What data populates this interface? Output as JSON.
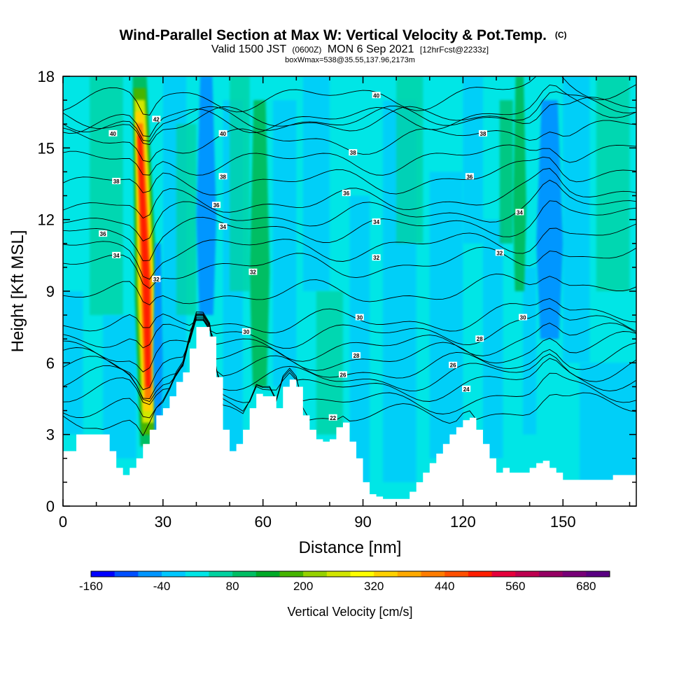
{
  "header": {
    "title": "Wind-Parallel Section at Max W: Vertical Velocity & Pot.Temp.",
    "title_mark": "(C)",
    "subtitle_prefix": "Valid 1500 JST",
    "subtitle_utc": "(0600Z)",
    "subtitle_main": "MON 6 Sep 2021",
    "subtitle_fcst": "[12hrFcst@2233z]",
    "subtitle2": "boxWmax=538@35.55,137.96,2173m"
  },
  "colors": {
    "background_field": "#00e6e6",
    "terrain": "#ffffff",
    "contour": "#000000",
    "colorbar": [
      "#0000ff",
      "#0050ff",
      "#0096ff",
      "#00c8ff",
      "#00e6e6",
      "#00d2a0",
      "#00be64",
      "#00aa28",
      "#46b400",
      "#96d200",
      "#d2e600",
      "#ffff00",
      "#ffd200",
      "#ffaa00",
      "#ff7d00",
      "#ff5000",
      "#ff1e00",
      "#e6003c",
      "#be0050",
      "#960064",
      "#780078",
      "#5a0082"
    ]
  },
  "chart_data": {
    "type": "heatmap",
    "title": "Wind-Parallel Section at Max W: Vertical Velocity & Pot.Temp.",
    "xlabel": "Distance [nm]",
    "ylabel": "Height [Kft MSL]",
    "xlim": [
      0,
      172
    ],
    "ylim": [
      0,
      18
    ],
    "x_ticks": [
      0,
      30,
      60,
      90,
      120,
      150
    ],
    "y_ticks": [
      0,
      3,
      6,
      9,
      12,
      15,
      18
    ],
    "colorbar": {
      "label": "Vertical Velocity [cm/s]",
      "range": [
        -160,
        720
      ],
      "step": 40,
      "ticks": [
        -160,
        -40,
        80,
        200,
        320,
        440,
        560,
        680
      ]
    },
    "terrain_profile": {
      "x": [
        0,
        4,
        10,
        14,
        16,
        18,
        20,
        22,
        24,
        26,
        28,
        30,
        32,
        34,
        36,
        38,
        40,
        42,
        44,
        46,
        48,
        50,
        52,
        54,
        56,
        58,
        60,
        62,
        64,
        66,
        68,
        70,
        72,
        74,
        76,
        78,
        80,
        82,
        84,
        86,
        88,
        90,
        92,
        94,
        96,
        98,
        100,
        102,
        104,
        106,
        108,
        110,
        112,
        114,
        116,
        118,
        120,
        122,
        124,
        126,
        128,
        130,
        132,
        134,
        136,
        138,
        140,
        142,
        144,
        146,
        148,
        150,
        155,
        160,
        165,
        172
      ],
      "height": [
        2.3,
        3.0,
        3.0,
        2.3,
        1.6,
        1.3,
        1.6,
        2.0,
        2.6,
        3.2,
        3.8,
        4.1,
        4.6,
        5.2,
        5.6,
        6.6,
        7.5,
        7.5,
        7.1,
        5.4,
        3.2,
        2.3,
        2.6,
        3.2,
        4.1,
        4.7,
        4.6,
        4.6,
        4.1,
        5.0,
        5.3,
        5.0,
        3.8,
        3.2,
        2.8,
        2.7,
        2.8,
        3.3,
        3.5,
        2.7,
        2.0,
        1.0,
        0.5,
        0.4,
        0.3,
        0.3,
        0.3,
        0.3,
        0.6,
        1.0,
        1.4,
        1.8,
        2.2,
        2.6,
        3.0,
        3.3,
        3.6,
        3.7,
        3.2,
        2.6,
        2.0,
        1.4,
        1.6,
        1.4,
        1.4,
        1.4,
        1.6,
        1.8,
        1.9,
        1.6,
        1.4,
        1.1,
        1.1,
        1.1,
        1.3,
        1.4
      ]
    },
    "features": [
      {
        "name": "updraft",
        "x": 25,
        "x_range": [
          21,
          28
        ],
        "z_range": [
          2.5,
          18
        ],
        "peak": 538
      },
      {
        "name": "downdraft",
        "x": 28.5,
        "x_range": [
          27,
          30
        ],
        "z_range": [
          3,
          11
        ],
        "peak": -150
      },
      {
        "name": "downdraft",
        "x": 43,
        "x_range": [
          40,
          46
        ],
        "z_range": [
          8,
          18
        ],
        "peak": -140
      },
      {
        "name": "updraft",
        "x": 59,
        "x_range": [
          56,
          62
        ],
        "z_range": [
          5,
          17
        ],
        "peak": 110
      },
      {
        "name": "updraft",
        "x": 137,
        "x_range": [
          135,
          139
        ],
        "z_range": [
          9,
          18
        ],
        "peak": 150
      },
      {
        "name": "downdraft",
        "x": 146,
        "x_range": [
          142,
          150
        ],
        "z_range": [
          7,
          17
        ],
        "peak": -130
      }
    ],
    "isentropes": [
      {
        "value": 22,
        "label": "22",
        "label_x": 81,
        "label_z": 3.7
      },
      {
        "value": 24,
        "label": "24",
        "label_x": 121,
        "label_z": 4.9
      },
      {
        "value": 26,
        "label": "26",
        "label_x": 84,
        "label_z": 5.5
      },
      {
        "value": 26,
        "label": "26",
        "label_x": 117,
        "label_z": 5.9
      },
      {
        "value": 28,
        "label": "28",
        "label_x": 88,
        "label_z": 6.3
      },
      {
        "value": 28,
        "label": "28",
        "label_x": 125,
        "label_z": 7.0
      },
      {
        "value": 30,
        "label": "30",
        "label_x": 55,
        "label_z": 7.3
      },
      {
        "value": 30,
        "label": "30",
        "label_x": 89,
        "label_z": 7.9
      },
      {
        "value": 30,
        "label": "30",
        "label_x": 138,
        "label_z": 7.9
      },
      {
        "value": 32,
        "label": "32",
        "label_x": 28,
        "label_z": 9.5
      },
      {
        "value": 32,
        "label": "32",
        "label_x": 57,
        "label_z": 9.8
      },
      {
        "value": 32,
        "label": "32",
        "label_x": 94,
        "label_z": 10.4
      },
      {
        "value": 32,
        "label": "32",
        "label_x": 131,
        "label_z": 10.6
      },
      {
        "value": 34,
        "label": "34",
        "label_x": 16,
        "label_z": 10.5
      },
      {
        "value": 34,
        "label": "34",
        "label_x": 48,
        "label_z": 11.7
      },
      {
        "value": 34,
        "label": "34",
        "label_x": 94,
        "label_z": 11.9
      },
      {
        "value": 34,
        "label": "34",
        "label_x": 137,
        "label_z": 12.3
      },
      {
        "value": 36,
        "label": "36",
        "label_x": 12,
        "label_z": 11.4
      },
      {
        "value": 36,
        "label": "36",
        "label_x": 46,
        "label_z": 12.6
      },
      {
        "value": 36,
        "label": "36",
        "label_x": 85,
        "label_z": 13.1
      },
      {
        "value": 36,
        "label": "36",
        "label_x": 122,
        "label_z": 13.8
      },
      {
        "value": 38,
        "label": "38",
        "label_x": 16,
        "label_z": 13.6
      },
      {
        "value": 38,
        "label": "38",
        "label_x": 48,
        "label_z": 13.8
      },
      {
        "value": 38,
        "label": "38",
        "label_x": 87,
        "label_z": 14.8
      },
      {
        "value": 38,
        "label": "38",
        "label_x": 126,
        "label_z": 15.6
      },
      {
        "value": 40,
        "label": "40",
        "label_x": 15,
        "label_z": 15.6
      },
      {
        "value": 40,
        "label": "40",
        "label_x": 48,
        "label_z": 15.6
      },
      {
        "value": 40,
        "label": "40",
        "label_x": 94,
        "label_z": 17.2
      },
      {
        "value": 42,
        "label": "42",
        "label_x": 28,
        "label_z": 16.2
      }
    ],
    "grid": false,
    "legend": "bottom colorbar"
  }
}
